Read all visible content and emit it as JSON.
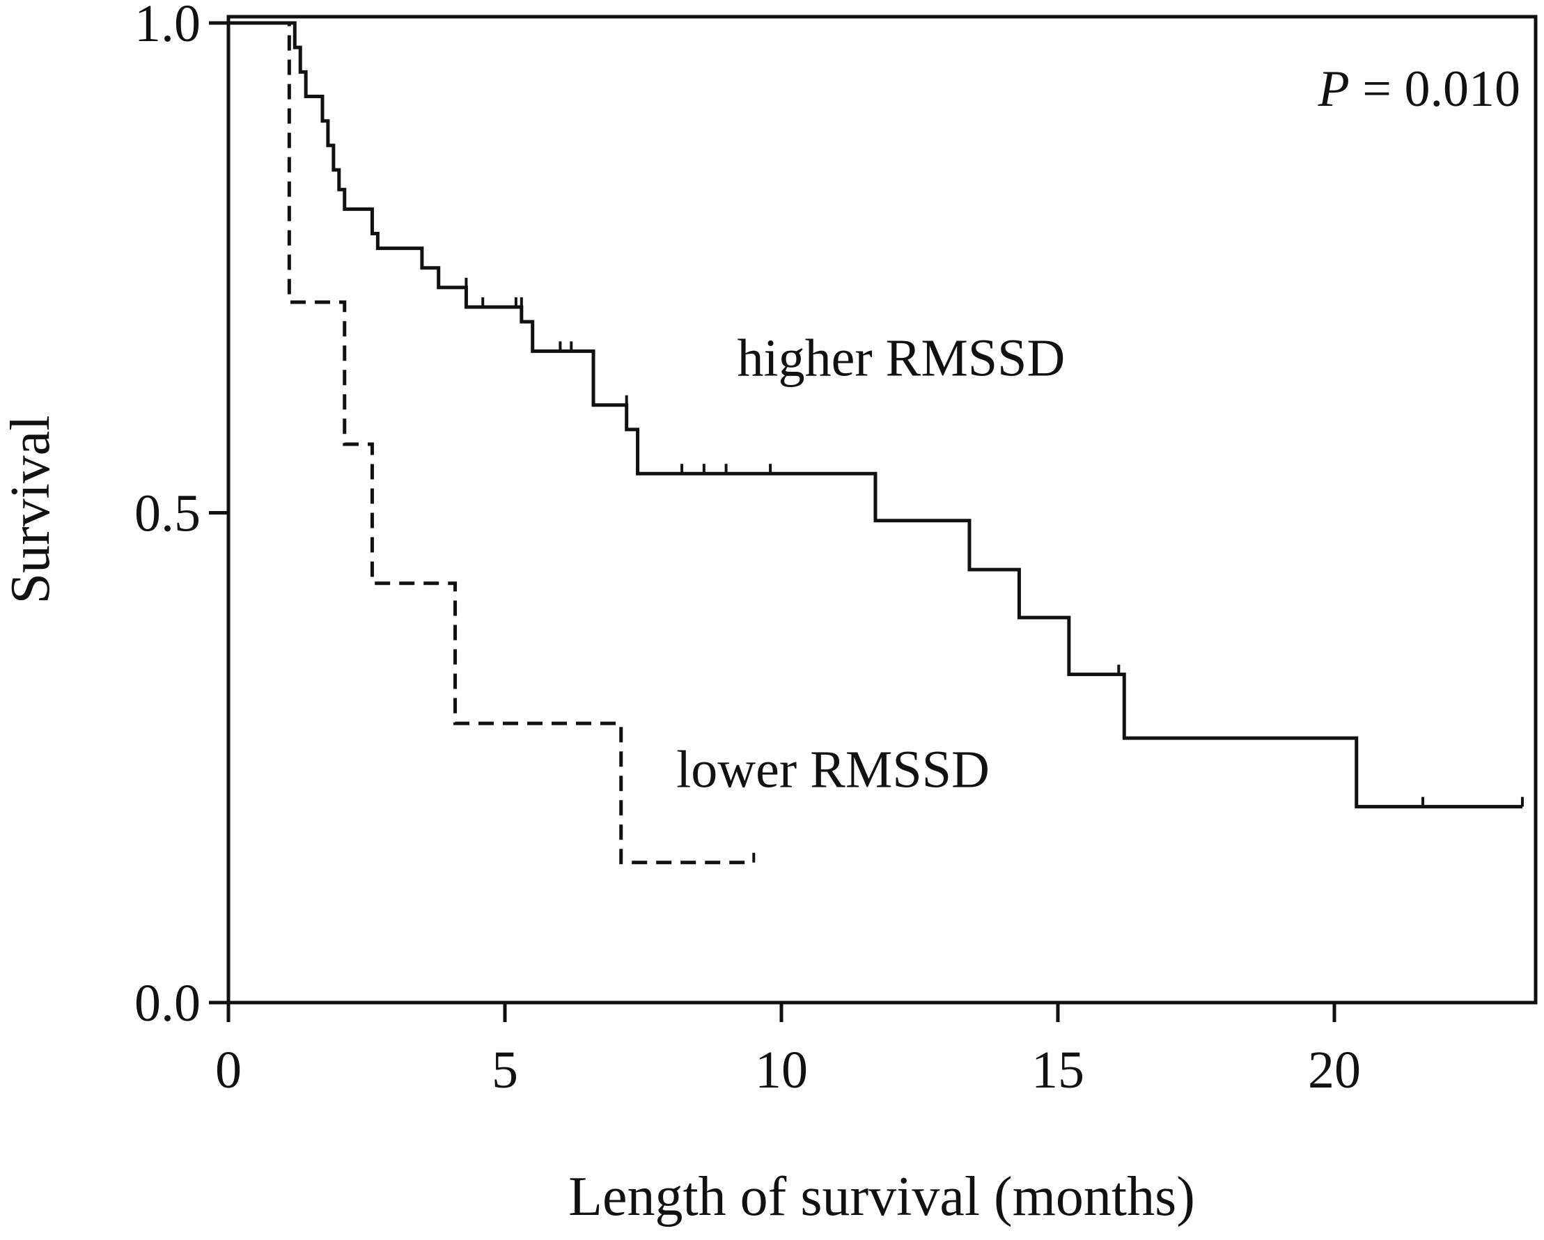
{
  "chart_data": {
    "type": "line",
    "subtype": "kaplan-meier-step",
    "title": "",
    "xlabel": "Length of survival (months)",
    "ylabel": "Survival",
    "xlim": [
      0,
      23.5
    ],
    "ylim": [
      0,
      1.0
    ],
    "xticks": [
      0,
      5,
      10,
      15,
      20
    ],
    "xtick_labels": [
      "0",
      "5",
      "10",
      "15",
      "20"
    ],
    "yticks": [
      0.0,
      0.5,
      1.0
    ],
    "ytick_labels": [
      "0.0",
      "0.5",
      "1.0"
    ],
    "grid": false,
    "legend": "none (inline series labels)",
    "annotation": {
      "italic": "P",
      "rest": " = 0.010"
    },
    "series": [
      {
        "name": "higher RMSSD",
        "style": "solid",
        "color": "#111111",
        "label_anchor": [
          9.2,
          0.64
        ],
        "steps": [
          [
            0,
            1.0
          ],
          [
            1.2,
            0.975
          ],
          [
            1.3,
            0.95
          ],
          [
            1.4,
            0.925
          ],
          [
            1.7,
            0.9
          ],
          [
            1.8,
            0.875
          ],
          [
            1.9,
            0.85
          ],
          [
            2.0,
            0.83
          ],
          [
            2.1,
            0.81
          ],
          [
            2.6,
            0.785
          ],
          [
            2.7,
            0.77
          ],
          [
            3.5,
            0.75
          ],
          [
            3.8,
            0.73
          ],
          [
            4.3,
            0.71
          ],
          [
            5.3,
            0.695
          ],
          [
            5.5,
            0.665
          ],
          [
            6.6,
            0.61
          ],
          [
            7.2,
            0.585
          ],
          [
            7.4,
            0.54
          ],
          [
            11.7,
            0.492
          ],
          [
            13.4,
            0.442
          ],
          [
            14.3,
            0.393
          ],
          [
            15.2,
            0.335
          ],
          [
            16.2,
            0.27
          ],
          [
            20.4,
            0.2
          ],
          [
            23.4,
            0.2
          ]
        ],
        "censored": [
          [
            4.3,
            0.73
          ],
          [
            4.6,
            0.71
          ],
          [
            5.2,
            0.71
          ],
          [
            5.3,
            0.71
          ],
          [
            6.0,
            0.665
          ],
          [
            6.2,
            0.665
          ],
          [
            7.2,
            0.61
          ],
          [
            8.2,
            0.54
          ],
          [
            8.6,
            0.54
          ],
          [
            9.0,
            0.54
          ],
          [
            9.8,
            0.54
          ],
          [
            16.1,
            0.335
          ],
          [
            21.6,
            0.2
          ],
          [
            23.4,
            0.2
          ]
        ]
      },
      {
        "name": "lower RMSSD",
        "style": "dashed",
        "color": "#111111",
        "label_anchor": [
          8.1,
          0.22
        ],
        "steps": [
          [
            0,
            1.0
          ],
          [
            1.1,
            0.86
          ],
          [
            1.1,
            0.715
          ],
          [
            2.1,
            0.57
          ],
          [
            2.6,
            0.428
          ],
          [
            4.1,
            0.285
          ],
          [
            7.1,
            0.143
          ],
          [
            9.5,
            0.143
          ]
        ],
        "censored": [
          [
            9.5,
            0.143
          ]
        ]
      }
    ]
  }
}
